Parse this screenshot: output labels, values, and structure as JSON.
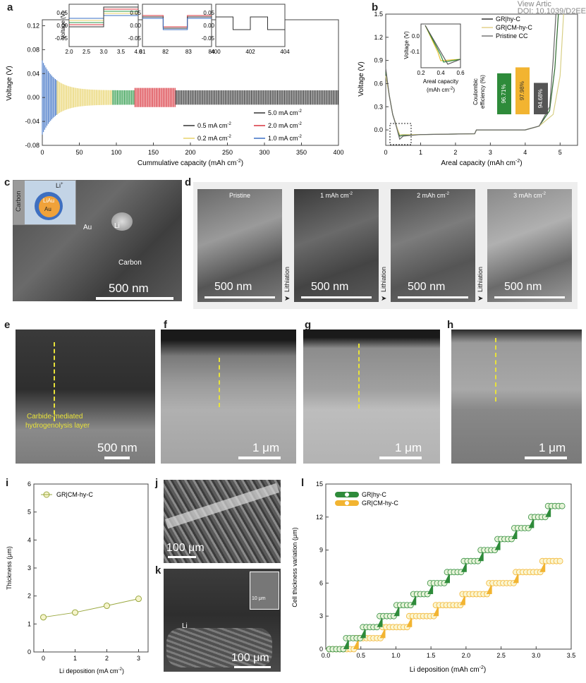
{
  "header": {
    "view_article": "View Artic",
    "doi": "DOI: 10.1039/D2EE"
  },
  "panels": {
    "a": {
      "label": "a",
      "xlabel": "Cummulative capacity (mAh cm",
      "xlabel_sup": "-2",
      "xlabel_end": ")",
      "ylabel": "Voltage (V)",
      "inset_ylabel": "Voltage (V)",
      "legend": [
        {
          "text": "5.0 mA cm",
          "color": "#333333"
        },
        {
          "text": "0.5 mA cm",
          "color": "#333333"
        },
        {
          "text": "2.0 mA cm",
          "color": "#d9343d"
        },
        {
          "text": "0.2 mA cm",
          "color": "#e8d36a"
        },
        {
          "text": "1.0 mA cm",
          "color": "#3a6fc4"
        }
      ],
      "legend_sup": "-2"
    },
    "b": {
      "label": "b",
      "xlabel": "Areal capacity (mAh cm",
      "xlabel_sup": "-2",
      "xlabel_end": ")",
      "ylabel": "Voltage (V)",
      "legend": [
        {
          "text": "GR|hy-C",
          "color": "#333333"
        },
        {
          "text": "GR|CM-hy-C",
          "color": "#e3d08a"
        },
        {
          "text": "Pristine CC",
          "color": "#777777"
        }
      ],
      "inset_xlabel": "Areal capacity",
      "inset_xlabel2": "(mAh cm",
      "inset_xlabel2_sup": "-2",
      "inset_xlabel2_end": ")",
      "inset_ylabel": "Voltage (V)",
      "ce_label": "Coulombic",
      "ce_label2": "efficiency (%)",
      "ce_bars": [
        {
          "value": "96.71%",
          "color": "#2e8b3a"
        },
        {
          "value": "97.98%",
          "color": "#f2b431"
        },
        {
          "value": "94.68%",
          "color": "#555555"
        }
      ]
    },
    "c": {
      "label": "c",
      "li_ion": "Li",
      "li_ion_sup": "+",
      "carbon": "Carbon",
      "liau": "LiAu",
      "au": "Au",
      "li": "Li",
      "au2": "Au",
      "carbon2": "Carbon",
      "scale": "500 nm"
    },
    "d": {
      "label": "d",
      "tiles": [
        {
          "title": "Pristine",
          "scale": "500 nm"
        },
        {
          "title": "1 mAh cm",
          "title_sup": "-2",
          "scale": "500 nm"
        },
        {
          "title": "2 mAh cm",
          "title_sup": "-2",
          "scale": "500 nm"
        },
        {
          "title": "3 mAh cm",
          "title_sup": "-2",
          "scale": "500 nm"
        }
      ],
      "arrow_label": "Lithiation"
    },
    "e": {
      "label": "e",
      "annotation1": "Carbide-mediated",
      "annotation2": "hydrogenolysis layer",
      "scale": "500 nm"
    },
    "f": {
      "label": "f",
      "scale": "1 μm"
    },
    "g": {
      "label": "g",
      "scale": "1 μm"
    },
    "h": {
      "label": "h",
      "scale": "1 μm"
    },
    "i": {
      "label": "i",
      "xlabel": "Li deposition (mA cm",
      "xlabel_sup": "-2",
      "xlabel_end": ")",
      "ylabel": "Thickness (μm)",
      "legend": "GR|CM-hy-C"
    },
    "j": {
      "label": "j",
      "scale": "100 μm"
    },
    "k": {
      "label": "k",
      "li": "Li",
      "inset_scale": "10 μm",
      "scale": "100 μm"
    },
    "l": {
      "label": "l",
      "xlabel": "Li deposition (mAh cm",
      "xlabel_sup": "-2",
      "xlabel_end": ")",
      "ylabel": "Cell thickness variation (μm)",
      "legend": [
        {
          "text": "GR|hy-C",
          "color": "#2e8b3a"
        },
        {
          "text": "GR|CM-hy-C",
          "color": "#f2b431"
        }
      ]
    }
  },
  "chart_data": [
    {
      "id": "a",
      "type": "line",
      "x_ticks": [
        0,
        50,
        100,
        150,
        200,
        250,
        300,
        350,
        400
      ],
      "y_ticks": [
        -0.08,
        -0.04,
        0.0,
        0.04,
        0.08,
        0.12
      ],
      "xlim": [
        0,
        400
      ],
      "ylim": [
        -0.08,
        0.13
      ],
      "regions": [
        {
          "name": "1.0 mA cm-2",
          "x_start": 0,
          "x_end": 20,
          "color": "#3a6fc4"
        },
        {
          "name": "0.2 mA cm-2",
          "x_start": 20,
          "x_end": 95,
          "color": "#e8d36a"
        },
        {
          "name": "0.5 mA cm-2",
          "x_start": 95,
          "x_end": 125,
          "color": "#2e9a4a"
        },
        {
          "name": "2.0 mA cm-2",
          "x_start": 125,
          "x_end": 180,
          "color": "#d9343d"
        },
        {
          "name": "5.0 mA cm-2",
          "x_start": 180,
          "x_end": 400,
          "color": "#333333"
        }
      ],
      "insets": [
        {
          "x_ticks": [
            "2.0",
            "2.5",
            "3.0",
            "3.5",
            "4.0"
          ],
          "y_ticks": [
            "0.05",
            "0.00",
            "-0.05"
          ]
        },
        {
          "x_ticks": [
            "81",
            "82",
            "83",
            "84"
          ],
          "y_ticks": [
            "0.05",
            "0.00",
            "-0.05"
          ]
        },
        {
          "x_ticks": [
            "400",
            "402",
            "404"
          ],
          "y_ticks": [
            "0.05",
            "0.00",
            "-0.05"
          ]
        }
      ]
    },
    {
      "id": "b",
      "type": "line",
      "x_ticks": [
        0,
        1,
        2,
        3,
        4,
        5
      ],
      "y_ticks": [
        "0.0",
        "0.3",
        "0.6",
        "0.9",
        "1.2",
        "1.5"
      ],
      "xlim": [
        0,
        5.5
      ],
      "ylim": [
        -0.2,
        1.5
      ],
      "series": [
        {
          "name": "GR|hy-C",
          "points": [
            [
              0,
              0.75
            ],
            [
              0.1,
              0.45
            ],
            [
              0.2,
              0.2
            ],
            [
              0.3,
              0.06
            ],
            [
              0.4,
              -0.08
            ],
            [
              0.5,
              -0.07
            ],
            [
              1,
              -0.06
            ],
            [
              2.55,
              -0.05
            ],
            [
              2.6,
              0.0
            ],
            [
              4.0,
              0.0
            ],
            [
              4.4,
              0.05
            ],
            [
              4.7,
              0.25
            ],
            [
              4.85,
              0.8
            ],
            [
              4.95,
              1.5
            ]
          ]
        },
        {
          "name": "GR|CM-hy-C",
          "points": [
            [
              0,
              0.7
            ],
            [
              0.1,
              0.45
            ],
            [
              0.2,
              0.2
            ],
            [
              0.3,
              0.06
            ],
            [
              0.4,
              -0.06
            ],
            [
              0.5,
              -0.06
            ],
            [
              1,
              -0.06
            ],
            [
              2.55,
              -0.05
            ],
            [
              2.6,
              0.0
            ],
            [
              4.0,
              0.0
            ],
            [
              4.4,
              0.05
            ],
            [
              4.8,
              0.2
            ],
            [
              5.0,
              0.7
            ],
            [
              5.1,
              1.5
            ]
          ]
        },
        {
          "name": "Pristine CC",
          "points": [
            [
              0,
              0.8
            ],
            [
              0.1,
              0.45
            ],
            [
              0.2,
              0.2
            ],
            [
              0.3,
              0.05
            ],
            [
              0.4,
              -0.12
            ],
            [
              0.5,
              -0.08
            ],
            [
              1,
              -0.06
            ],
            [
              2.55,
              -0.05
            ],
            [
              2.6,
              0.0
            ],
            [
              4.0,
              0.0
            ],
            [
              4.4,
              0.05
            ],
            [
              4.7,
              0.3
            ],
            [
              4.8,
              0.9
            ],
            [
              4.88,
              1.5
            ]
          ]
        }
      ],
      "inset_x_ticks": [
        "0.2",
        "0.4",
        "0.6"
      ],
      "inset_y_ticks": [
        "0.0",
        "-0.1"
      ],
      "ce_values": [
        96.71,
        97.98,
        94.68
      ]
    },
    {
      "id": "i",
      "type": "line",
      "x_ticks": [
        0,
        1,
        2,
        3
      ],
      "y_ticks": [
        0,
        1,
        2,
        3,
        4,
        5,
        6
      ],
      "xlim": [
        -0.3,
        3.3
      ],
      "ylim": [
        0,
        6
      ],
      "series": [
        {
          "name": "GR|CM-hy-C",
          "x": [
            0,
            1,
            2,
            3
          ],
          "y": [
            1.24,
            1.41,
            1.65,
            1.9
          ]
        }
      ]
    },
    {
      "id": "l",
      "type": "scatter",
      "x_ticks": [
        "0.0",
        "0.5",
        "1.0",
        "1.5",
        "2.0",
        "2.5",
        "3.0",
        "3.5"
      ],
      "y_ticks": [
        0,
        3,
        6,
        9,
        12,
        15
      ],
      "xlim": [
        0,
        3.5
      ],
      "ylim": [
        0,
        15
      ],
      "series": [
        {
          "name": "GR|hy-C",
          "steps": [
            0,
            1,
            2,
            3,
            4,
            5,
            6,
            7,
            8,
            9,
            10,
            11,
            12,
            13
          ],
          "step_width": 0.24
        },
        {
          "name": "GR|CM-hy-C",
          "steps": [
            0,
            1,
            2,
            3,
            4,
            5,
            6,
            7,
            8
          ],
          "step_width": 0.38
        }
      ]
    }
  ]
}
